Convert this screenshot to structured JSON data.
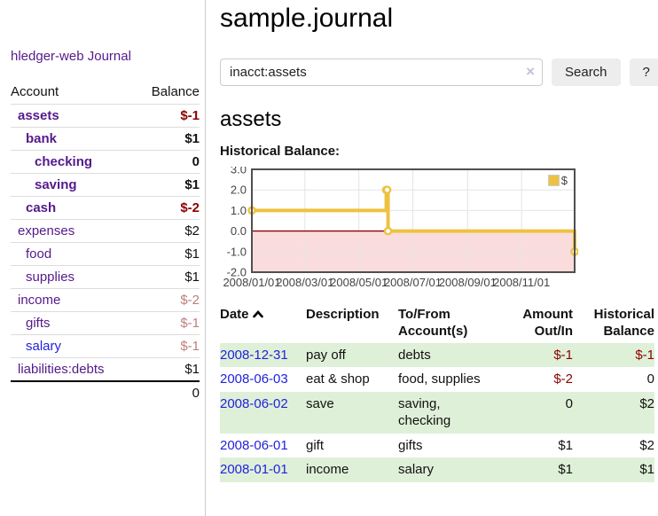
{
  "sidebar": {
    "app_title": "hledger-web",
    "journal_link": "Journal",
    "accounts_table": {
      "headers": [
        "Account",
        "Balance"
      ],
      "rows": [
        {
          "name": "assets",
          "balance": "$-1",
          "depth": 1,
          "bold": true,
          "negative": true,
          "blue": false
        },
        {
          "name": "bank",
          "balance": "$1",
          "depth": 2,
          "bold": true,
          "negative": false,
          "blue": false
        },
        {
          "name": "checking",
          "balance": "0",
          "depth": 3,
          "bold": true,
          "negative": false,
          "blue": false
        },
        {
          "name": "saving",
          "balance": "$1",
          "depth": 3,
          "bold": true,
          "negative": false,
          "blue": false
        },
        {
          "name": "cash",
          "balance": "$-2",
          "depth": 2,
          "bold": true,
          "negative": true,
          "blue": false
        },
        {
          "name": "expenses",
          "balance": "$2",
          "depth": 1,
          "bold": false,
          "negative": false,
          "blue": false
        },
        {
          "name": "food",
          "balance": "$1",
          "depth": 2,
          "bold": false,
          "negative": false,
          "blue": false
        },
        {
          "name": "supplies",
          "balance": "$1",
          "depth": 2,
          "bold": false,
          "negative": false,
          "blue": false
        },
        {
          "name": "income",
          "balance": "$-2",
          "depth": 1,
          "bold": false,
          "negative": true,
          "blue": false
        },
        {
          "name": "gifts",
          "balance": "$-1",
          "depth": 2,
          "bold": false,
          "negative": true,
          "blue": false
        },
        {
          "name": "salary",
          "balance": "$-1",
          "depth": 2,
          "bold": false,
          "negative": true,
          "blue": true
        },
        {
          "name": "liabilities:debts",
          "balance": "$1",
          "depth": 1,
          "bold": false,
          "negative": false,
          "blue": false
        }
      ],
      "total": "0"
    }
  },
  "header": {
    "title": "sample.journal"
  },
  "search": {
    "query": "inacct:assets",
    "clear_icon": "×",
    "search_button": "Search",
    "help_button": "?"
  },
  "account_page": {
    "title": "assets",
    "chart_label": "Historical Balance:"
  },
  "chart_data": {
    "type": "line",
    "title": "Historical Balance",
    "step": true,
    "series": [
      {
        "name": "$",
        "color": "#edc240",
        "points": [
          [
            "2008-01-01",
            1
          ],
          [
            "2008-06-01",
            2
          ],
          [
            "2008-06-02",
            2
          ],
          [
            "2008-06-03",
            0
          ],
          [
            "2008-12-31",
            -1
          ]
        ]
      }
    ],
    "x_ticks": [
      "2008/01/01",
      "2008/03/01",
      "2008/05/01",
      "2008/07/01",
      "2008/09/01",
      "2008/11/01"
    ],
    "y_ticks": [
      3.0,
      2.0,
      1.0,
      0.0,
      -1.0,
      -2.0
    ],
    "xlim": [
      "2008-01-01",
      "2008-12-31"
    ],
    "ylim": [
      -2,
      3
    ],
    "grid": true,
    "legend_label": "$",
    "legend_position": "top-right",
    "negative_region_color": "#fbdcdc",
    "zero_line_color": "#8b0000",
    "grid_color": "#e4e4e4",
    "border_color": "#4f4f4f",
    "tick_color": "#444444"
  },
  "register_table": {
    "headers": [
      "Date",
      "Description",
      "To/From Account(s)",
      "Amount Out/In",
      "Historical Balance"
    ],
    "sort_icon": "chevron-up",
    "rows": [
      {
        "date": "2008-12-31",
        "description": "pay off",
        "accounts": "debts",
        "amount": "$-1",
        "balance": "$-1"
      },
      {
        "date": "2008-06-03",
        "description": "eat & shop",
        "accounts": "food, supplies",
        "amount": "$-2",
        "balance": "0"
      },
      {
        "date": "2008-06-02",
        "description": "save",
        "accounts": "saving, checking",
        "amount": "0",
        "balance": "$2"
      },
      {
        "date": "2008-06-01",
        "description": "gift",
        "accounts": "gifts",
        "amount": "$1",
        "balance": "$2"
      },
      {
        "date": "2008-01-01",
        "description": "income",
        "accounts": "salary",
        "amount": "$1",
        "balance": "$1"
      }
    ]
  }
}
